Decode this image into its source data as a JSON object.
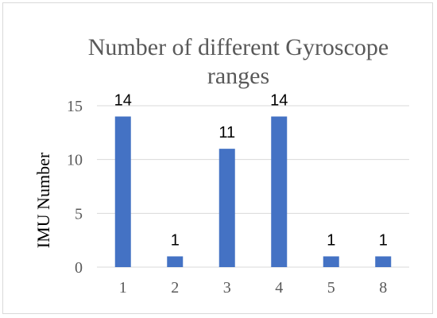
{
  "chart_data": {
    "type": "bar",
    "title_lines": [
      "Number of different Gyroscope",
      "ranges"
    ],
    "ylabel": "IMU Number",
    "xlabel": "",
    "categories": [
      "1",
      "2",
      "3",
      "4",
      "5",
      "8"
    ],
    "values": [
      14,
      1,
      11,
      14,
      1,
      1
    ],
    "data_labels": [
      "14",
      "1",
      "11",
      "14",
      "1",
      "1"
    ],
    "ylim": [
      0,
      15
    ],
    "yticks": [
      0,
      5,
      10,
      15
    ],
    "grid": true,
    "bar_color": "#4472c4",
    "grid_color": "#d9d9d9"
  }
}
